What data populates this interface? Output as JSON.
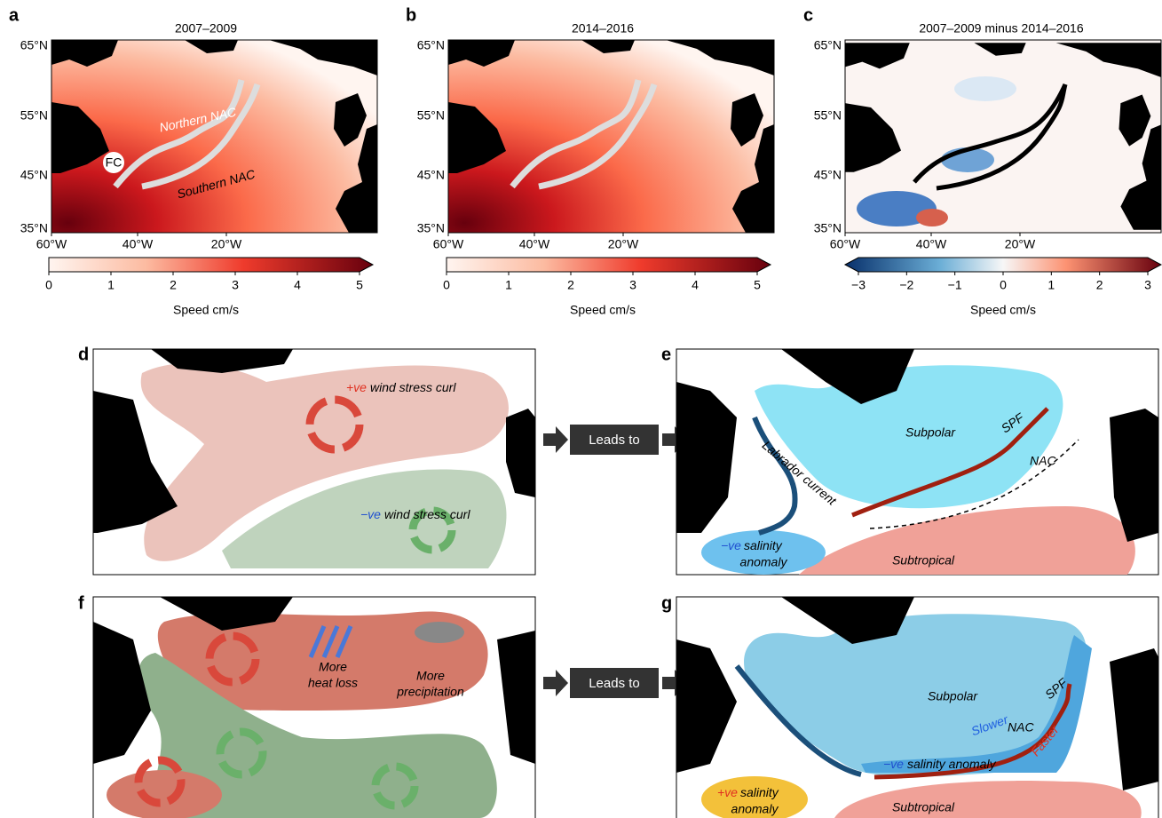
{
  "maps": [
    {
      "letter": "a",
      "title": "2007–2009",
      "y_ticks": [
        "65°N",
        "55°N",
        "45°N",
        "35°N"
      ],
      "x_ticks": [
        "60°W",
        "40°W",
        "20°W"
      ],
      "annotations": {
        "northern": "Northern NAC",
        "southern": "Southern NAC",
        "fc": "FC"
      },
      "colorbar": {
        "ticks": [
          "0",
          "1",
          "2",
          "3",
          "4",
          "5"
        ],
        "label": "Speed cm/s"
      }
    },
    {
      "letter": "b",
      "title": "2014–2016",
      "y_ticks": [
        "65°N",
        "55°N",
        "45°N",
        "35°N"
      ],
      "x_ticks": [
        "60°W",
        "40°W",
        "20°W"
      ],
      "colorbar": {
        "ticks": [
          "0",
          "1",
          "2",
          "3",
          "4",
          "5"
        ],
        "label": "Speed cm/s"
      }
    },
    {
      "letter": "c",
      "title": "2007–2009 minus 2014–2016",
      "y_ticks": [
        "65°N",
        "55°N",
        "45°N",
        "35°N"
      ],
      "x_ticks": [
        "60°W",
        "40°W",
        "20°W"
      ],
      "colorbar": {
        "ticks": [
          "−3",
          "−2",
          "−1",
          "0",
          "1",
          "2",
          "3"
        ],
        "label": "Speed cm/s"
      }
    }
  ],
  "schematics": {
    "d": {
      "letter": "d",
      "pos_sign": "+ve",
      "pos_text": "wind stress curl",
      "neg_sign": "−ve",
      "neg_text": "wind stress curl"
    },
    "e": {
      "letter": "e",
      "subpolar": "Subpolar",
      "spf": "SPF",
      "nac": "NAC",
      "labrador": "Labrador current",
      "neg_sign": "−ve",
      "salinity": "salinity",
      "anomaly": "anomaly",
      "subtropical": "Subtropical"
    },
    "f": {
      "letter": "f",
      "heat_1": "More",
      "heat_2": "heat loss",
      "precip_1": "More",
      "precip_2": "precipitation"
    },
    "g": {
      "letter": "g",
      "subpolar": "Subpolar",
      "spf": "SPF",
      "slower": "Slower",
      "nac": "NAC",
      "faster": "Faster",
      "neg_sign": "−ve",
      "neg_text": "salinity anomaly",
      "pos_sign": "+ve",
      "salinity": "salinity",
      "anomaly": "anomaly",
      "subtropical": "Subtropical"
    }
  },
  "leads_to": [
    "Leads to",
    "Leads to"
  ]
}
